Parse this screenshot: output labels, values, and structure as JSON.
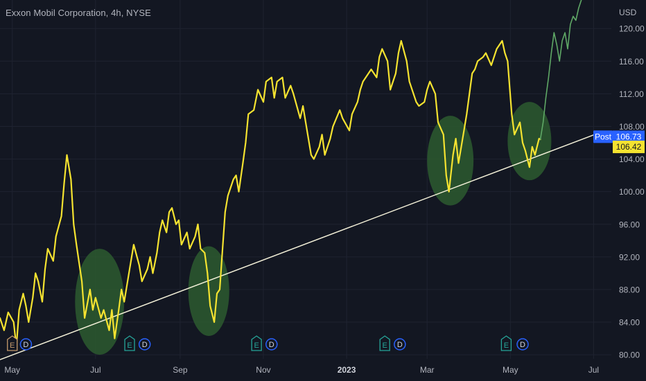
{
  "header": {
    "title": "Exxon Mobil Corporation, 4h, NYSE"
  },
  "colors": {
    "background": "#131722",
    "grid": "#1f2330",
    "axis_text": "#b2b5be",
    "price_line": "#f5e330",
    "post_market_line": "#5fa866",
    "trendline": "#f3f0d8",
    "highlight_circle": "#2d5a2f",
    "earnings_marker": "#26a69a",
    "earnings_marker_past": "#c49a6c",
    "dividend_marker": "#2962ff",
    "post_label": "#2962ff"
  },
  "chart_data": {
    "type": "line",
    "currency": "USD",
    "ylim": [
      79.5,
      123.5
    ],
    "xlim": [
      "2022-04-22",
      "2023-07-14"
    ],
    "y_ticks": [
      "120.00",
      "116.00",
      "112.00",
      "108.00",
      "104.00",
      "100.00",
      "96.00",
      "92.00",
      "88.00",
      "84.00",
      "80.00"
    ],
    "x_ticks": [
      {
        "label": "May",
        "date": "2022-05-01",
        "bold": false
      },
      {
        "label": "Jul",
        "date": "2022-07-01",
        "bold": false
      },
      {
        "label": "Sep",
        "date": "2022-09-01",
        "bold": false
      },
      {
        "label": "Nov",
        "date": "2022-11-01",
        "bold": false
      },
      {
        "label": "2023",
        "date": "2023-01-01",
        "bold": true
      },
      {
        "label": "Mar",
        "date": "2023-03-01",
        "bold": false
      },
      {
        "label": "May",
        "date": "2023-05-01",
        "bold": false
      },
      {
        "label": "Jul",
        "date": "2023-07-01",
        "bold": false
      }
    ],
    "series": [
      {
        "style": "regular_session",
        "points": [
          [
            "2022-04-22",
            84.5
          ],
          [
            "2022-04-25",
            83.0
          ],
          [
            "2022-04-28",
            85.2
          ],
          [
            "2022-05-02",
            84.0
          ],
          [
            "2022-05-04",
            81.0
          ],
          [
            "2022-05-06",
            85.5
          ],
          [
            "2022-05-09",
            87.5
          ],
          [
            "2022-05-11",
            86.0
          ],
          [
            "2022-05-13",
            84.0
          ],
          [
            "2022-05-16",
            87.0
          ],
          [
            "2022-05-18",
            90.0
          ],
          [
            "2022-05-20",
            89.0
          ],
          [
            "2022-05-23",
            86.5
          ],
          [
            "2022-05-25",
            90.5
          ],
          [
            "2022-05-27",
            93.0
          ],
          [
            "2022-05-31",
            91.5
          ],
          [
            "2022-06-02",
            94.5
          ],
          [
            "2022-06-06",
            97.0
          ],
          [
            "2022-06-08",
            101.0
          ],
          [
            "2022-06-10",
            104.5
          ],
          [
            "2022-06-13",
            101.5
          ],
          [
            "2022-06-15",
            96.0
          ],
          [
            "2022-06-17",
            93.5
          ],
          [
            "2022-06-21",
            89.0
          ],
          [
            "2022-06-23",
            84.5
          ],
          [
            "2022-06-27",
            88.0
          ],
          [
            "2022-06-29",
            85.5
          ],
          [
            "2022-07-01",
            87.0
          ],
          [
            "2022-07-05",
            84.5
          ],
          [
            "2022-07-07",
            85.5
          ],
          [
            "2022-07-11",
            83.0
          ],
          [
            "2022-07-13",
            85.5
          ],
          [
            "2022-07-15",
            82.0
          ],
          [
            "2022-07-18",
            85.5
          ],
          [
            "2022-07-20",
            88.0
          ],
          [
            "2022-07-22",
            86.5
          ],
          [
            "2022-07-26",
            90.5
          ],
          [
            "2022-07-29",
            93.5
          ],
          [
            "2022-08-02",
            91.0
          ],
          [
            "2022-08-04",
            89.0
          ],
          [
            "2022-08-08",
            90.5
          ],
          [
            "2022-08-10",
            92.0
          ],
          [
            "2022-08-12",
            90.0
          ],
          [
            "2022-08-15",
            92.5
          ],
          [
            "2022-08-17",
            95.0
          ],
          [
            "2022-08-19",
            96.5
          ],
          [
            "2022-08-22",
            95.0
          ],
          [
            "2022-08-24",
            97.5
          ],
          [
            "2022-08-26",
            98.0
          ],
          [
            "2022-08-29",
            96.0
          ],
          [
            "2022-08-31",
            96.5
          ],
          [
            "2022-09-02",
            93.5
          ],
          [
            "2022-09-06",
            95.0
          ],
          [
            "2022-09-08",
            93.0
          ],
          [
            "2022-09-12",
            94.5
          ],
          [
            "2022-09-14",
            96.0
          ],
          [
            "2022-09-16",
            93.0
          ],
          [
            "2022-09-19",
            92.5
          ],
          [
            "2022-09-21",
            90.0
          ],
          [
            "2022-09-23",
            86.0
          ],
          [
            "2022-09-26",
            84.0
          ],
          [
            "2022-09-28",
            87.5
          ],
          [
            "2022-09-30",
            88.0
          ],
          [
            "2022-10-04",
            97.5
          ],
          [
            "2022-10-06",
            99.5
          ],
          [
            "2022-10-10",
            101.5
          ],
          [
            "2022-10-12",
            102.0
          ],
          [
            "2022-10-14",
            100.0
          ],
          [
            "2022-10-17",
            103.5
          ],
          [
            "2022-10-19",
            106.0
          ],
          [
            "2022-10-21",
            109.5
          ],
          [
            "2022-10-25",
            110.0
          ],
          [
            "2022-10-28",
            112.5
          ],
          [
            "2022-11-01",
            111.0
          ],
          [
            "2022-11-03",
            113.5
          ],
          [
            "2022-11-07",
            114.0
          ],
          [
            "2022-11-09",
            111.5
          ],
          [
            "2022-11-11",
            113.5
          ],
          [
            "2022-11-15",
            114.0
          ],
          [
            "2022-11-17",
            111.5
          ],
          [
            "2022-11-21",
            113.0
          ],
          [
            "2022-11-23",
            112.0
          ],
          [
            "2022-11-28",
            109.0
          ],
          [
            "2022-11-30",
            110.5
          ],
          [
            "2022-12-02",
            108.5
          ],
          [
            "2022-12-06",
            104.5
          ],
          [
            "2022-12-08",
            104.0
          ],
          [
            "2022-12-12",
            105.5
          ],
          [
            "2022-12-14",
            107.0
          ],
          [
            "2022-12-16",
            104.5
          ],
          [
            "2022-12-20",
            106.5
          ],
          [
            "2022-12-22",
            108.0
          ],
          [
            "2022-12-27",
            110.0
          ],
          [
            "2022-12-29",
            109.0
          ],
          [
            "2023-01-03",
            107.5
          ],
          [
            "2023-01-05",
            109.5
          ],
          [
            "2023-01-09",
            111.0
          ],
          [
            "2023-01-11",
            112.5
          ],
          [
            "2023-01-13",
            113.5
          ],
          [
            "2023-01-17",
            114.5
          ],
          [
            "2023-01-19",
            115.0
          ],
          [
            "2023-01-23",
            114.0
          ],
          [
            "2023-01-25",
            116.5
          ],
          [
            "2023-01-27",
            117.5
          ],
          [
            "2023-01-31",
            116.0
          ],
          [
            "2023-02-02",
            112.5
          ],
          [
            "2023-02-06",
            114.5
          ],
          [
            "2023-02-08",
            117.0
          ],
          [
            "2023-02-10",
            118.5
          ],
          [
            "2023-02-14",
            116.0
          ],
          [
            "2023-02-16",
            113.5
          ],
          [
            "2023-02-21",
            111.0
          ],
          [
            "2023-02-23",
            110.5
          ],
          [
            "2023-02-27",
            111.0
          ],
          [
            "2023-03-01",
            112.5
          ],
          [
            "2023-03-03",
            113.5
          ],
          [
            "2023-03-07",
            112.0
          ],
          [
            "2023-03-09",
            108.5
          ],
          [
            "2023-03-13",
            107.0
          ],
          [
            "2023-03-15",
            102.0
          ],
          [
            "2023-03-17",
            100.0
          ],
          [
            "2023-03-20",
            104.5
          ],
          [
            "2023-03-22",
            106.5
          ],
          [
            "2023-03-24",
            103.5
          ],
          [
            "2023-03-28",
            107.5
          ],
          [
            "2023-03-30",
            109.5
          ],
          [
            "2023-04-03",
            114.5
          ],
          [
            "2023-04-05",
            115.0
          ],
          [
            "2023-04-07",
            116.0
          ],
          [
            "2023-04-11",
            116.5
          ],
          [
            "2023-04-13",
            117.0
          ],
          [
            "2023-04-17",
            115.5
          ],
          [
            "2023-04-19",
            116.5
          ],
          [
            "2023-04-21",
            117.5
          ],
          [
            "2023-04-25",
            118.5
          ],
          [
            "2023-04-27",
            117.0
          ],
          [
            "2023-04-29",
            116.0
          ],
          [
            "2023-05-02",
            109.5
          ],
          [
            "2023-05-04",
            107.0
          ],
          [
            "2023-05-08",
            108.5
          ],
          [
            "2023-05-10",
            106.0
          ],
          [
            "2023-05-12",
            105.0
          ],
          [
            "2023-05-15",
            103.0
          ],
          [
            "2023-05-17",
            105.5
          ],
          [
            "2023-05-19",
            104.5
          ],
          [
            "2023-05-22",
            106.5
          ],
          [
            "2023-05-23",
            106.42
          ]
        ]
      },
      {
        "style": "post_market",
        "points": [
          [
            "2023-05-23",
            106.42
          ],
          [
            "2023-05-25",
            108.5
          ],
          [
            "2023-05-27",
            111.5
          ],
          [
            "2023-05-29",
            114.0
          ],
          [
            "2023-05-31",
            117.0
          ],
          [
            "2023-06-02",
            119.5
          ],
          [
            "2023-06-04",
            118.0
          ],
          [
            "2023-06-06",
            116.0
          ],
          [
            "2023-06-08",
            118.5
          ],
          [
            "2023-06-10",
            119.5
          ],
          [
            "2023-06-12",
            117.5
          ],
          [
            "2023-06-14",
            120.5
          ],
          [
            "2023-06-16",
            121.5
          ],
          [
            "2023-06-18",
            121.0
          ],
          [
            "2023-06-20",
            122.5
          ],
          [
            "2023-06-22",
            123.5
          ]
        ]
      }
    ],
    "trendline": {
      "from": [
        "2022-04-22",
        79.4
      ],
      "to": [
        "2023-07-08",
        107.4
      ]
    },
    "highlights": [
      {
        "center": [
          "2022-07-04",
          86.5
        ],
        "rx_days": 18,
        "ry_price": 6.5
      },
      {
        "center": [
          "2022-09-22",
          87.8
        ],
        "rx_days": 15,
        "ry_price": 5.5
      },
      {
        "center": [
          "2023-03-18",
          103.8
        ],
        "rx_days": 17,
        "ry_price": 5.5
      },
      {
        "center": [
          "2023-05-15",
          106.2
        ],
        "rx_days": 16,
        "ry_price": 4.8
      }
    ],
    "event_markers": [
      {
        "kind": "E",
        "date": "2022-05-01",
        "label": "E",
        "variant": "past"
      },
      {
        "kind": "D",
        "date": "2022-05-11",
        "label": "D"
      },
      {
        "kind": "E",
        "date": "2022-07-26",
        "label": "E"
      },
      {
        "kind": "D",
        "date": "2022-08-06",
        "label": "D"
      },
      {
        "kind": "E",
        "date": "2022-10-27",
        "label": "E"
      },
      {
        "kind": "D",
        "date": "2022-11-07",
        "label": "D"
      },
      {
        "kind": "E",
        "date": "2023-01-29",
        "label": "E"
      },
      {
        "kind": "D",
        "date": "2023-02-09",
        "label": "D"
      },
      {
        "kind": "E",
        "date": "2023-04-28",
        "label": "E"
      },
      {
        "kind": "D",
        "date": "2023-05-10",
        "label": "D"
      }
    ],
    "price_labels": [
      {
        "tag": "Post",
        "value": "106.73",
        "price": 106.73,
        "style": "post"
      },
      {
        "value": "106.42",
        "price": 106.42,
        "style": "last"
      }
    ]
  }
}
